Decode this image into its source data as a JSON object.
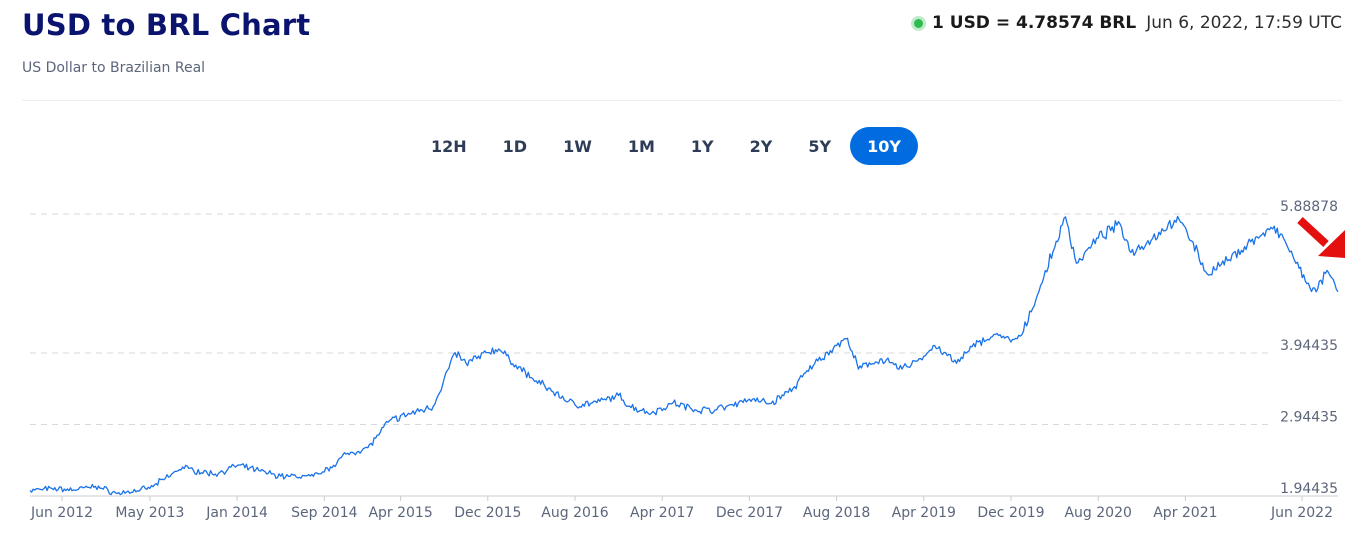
{
  "header": {
    "title": "USD to BRL Chart",
    "subtitle": "US Dollar to Brazilian Real"
  },
  "rate": {
    "text": "1 USD = 4.78574 BRL",
    "timestamp": "Jun 6, 2022, 17:59 UTC",
    "status_color": "#2fbb4f"
  },
  "tabs": [
    {
      "label": "12H",
      "active": false
    },
    {
      "label": "1D",
      "active": false
    },
    {
      "label": "1W",
      "active": false
    },
    {
      "label": "1M",
      "active": false
    },
    {
      "label": "1Y",
      "active": false
    },
    {
      "label": "2Y",
      "active": false
    },
    {
      "label": "5Y",
      "active": false
    },
    {
      "label": "10Y",
      "active": true
    }
  ],
  "chart_data": {
    "type": "line",
    "series": [
      {
        "color": "#1a73e8",
        "x": [
          "2012-06",
          "2012-08",
          "2012-10",
          "2012-12",
          "2013-02",
          "2013-05",
          "2013-07",
          "2013-08",
          "2013-09",
          "2013-11",
          "2014-01",
          "2014-03",
          "2014-05",
          "2014-08",
          "2014-09",
          "2014-11",
          "2015-01",
          "2015-03",
          "2015-05",
          "2015-07",
          "2015-09",
          "2015-10",
          "2015-12",
          "2016-01",
          "2016-02",
          "2016-04",
          "2016-06",
          "2016-08",
          "2016-10",
          "2016-12",
          "2017-01",
          "2017-03",
          "2017-05",
          "2017-07",
          "2017-09",
          "2017-11",
          "2017-12",
          "2018-02",
          "2018-04",
          "2018-06",
          "2018-08",
          "2018-09",
          "2018-10",
          "2018-12",
          "2019-02",
          "2019-04",
          "2019-05",
          "2019-07",
          "2019-09",
          "2019-11",
          "2019-12",
          "2020-01",
          "2020-03",
          "2020-05",
          "2020-06",
          "2020-08",
          "2020-10",
          "2020-11",
          "2021-01",
          "2021-03",
          "2021-04",
          "2021-06",
          "2021-08",
          "2021-10",
          "2021-12",
          "2022-01",
          "2022-03",
          "2022-04",
          "2022-05",
          "2022-06"
        ],
        "y": [
          2.02,
          2.05,
          2.03,
          2.08,
          1.98,
          2.05,
          2.25,
          2.35,
          2.3,
          2.25,
          2.37,
          2.3,
          2.22,
          2.22,
          2.28,
          2.53,
          2.62,
          3.0,
          3.1,
          3.2,
          3.95,
          3.8,
          3.95,
          4.0,
          3.85,
          3.6,
          3.4,
          3.22,
          3.25,
          3.35,
          3.2,
          3.1,
          3.25,
          3.15,
          3.15,
          3.25,
          3.3,
          3.24,
          3.45,
          3.8,
          4.05,
          4.15,
          3.72,
          3.86,
          3.72,
          3.9,
          4.05,
          3.8,
          4.1,
          4.2,
          4.1,
          4.2,
          5.0,
          5.85,
          5.2,
          5.55,
          5.75,
          5.35,
          5.55,
          5.8,
          5.7,
          5.05,
          5.25,
          5.5,
          5.68,
          5.55,
          4.95,
          4.8,
          5.1,
          4.8
        ]
      }
    ],
    "xticks": [
      "Jun 2012",
      "May 2013",
      "Jan 2014",
      "Sep 2014",
      "Apr 2015",
      "Dec 2015",
      "Aug 2016",
      "Apr 2017",
      "Dec 2017",
      "Aug 2018",
      "Apr 2019",
      "Dec 2019",
      "Aug 2020",
      "Apr 2021",
      "Jun 2022"
    ],
    "yticks": [
      {
        "value": 1.94435,
        "label": "1.94435"
      },
      {
        "value": 2.94435,
        "label": "2.94435"
      },
      {
        "value": 3.94435,
        "label": "3.94435"
      },
      {
        "value": 5.88878,
        "label": "5.88878"
      }
    ],
    "xlim": [
      "2012-06",
      "2022-06"
    ],
    "ylim": [
      1.94435,
      5.88878
    ],
    "grid": "horizontal-dashed",
    "annotation": {
      "type": "arrow",
      "color": "#e41010",
      "direction": "down-right"
    }
  }
}
